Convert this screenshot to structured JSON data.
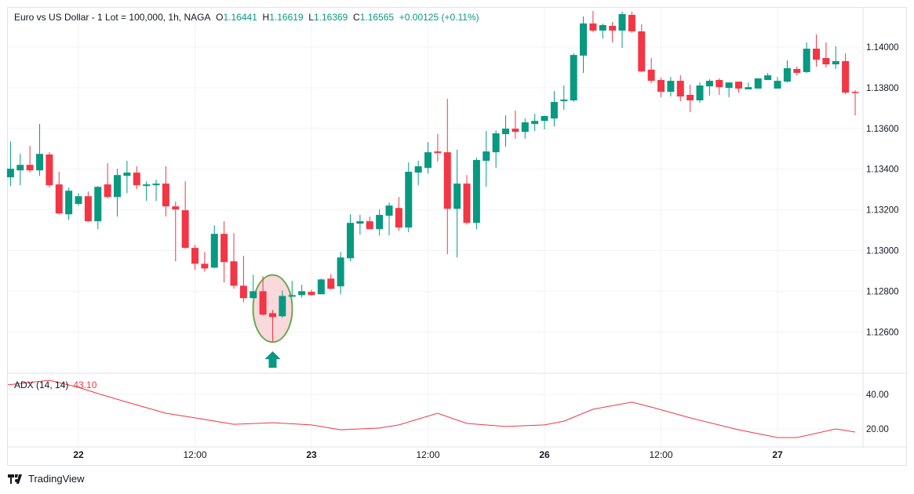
{
  "header": {
    "symbol_title": "Euro vs US Dollar - 1 Lot = 100,000, 1h, NAGA",
    "open_label": "O",
    "open": "1.16441",
    "high_label": "H",
    "high": "1.16619",
    "low_label": "L",
    "low": "1.16369",
    "close_label": "C",
    "close": "1.16565",
    "change": "+0.00125 (+0.11%)"
  },
  "indicator": {
    "name": "ADX (14, 14)",
    "value": "43.10",
    "color": "#f23645"
  },
  "footer": {
    "brand": "TradingView",
    "logo_icon": "tradingview-logo-icon"
  },
  "colors": {
    "up": "#089981",
    "down": "#f23645",
    "highlight_fill": "#f9d9dc",
    "highlight_stroke": "#6aa84f",
    "arrow": "#089981"
  },
  "chart_data": [
    {
      "type": "candlestick",
      "title": "",
      "ylim": [
        1.1248,
        1.1418
      ],
      "grid": true,
      "y_ticks": [
        "1.14000",
        "1.13800",
        "1.13600",
        "1.13400",
        "1.13200",
        "1.13000",
        "1.12800",
        "1.12600"
      ],
      "x_ticks": [
        {
          "index": 7,
          "label": "22",
          "day": true
        },
        {
          "index": 19,
          "label": "12:00",
          "day": false
        },
        {
          "index": 31,
          "label": "23",
          "day": true
        },
        {
          "index": 43,
          "label": "12:00",
          "day": false
        },
        {
          "index": 55,
          "label": "26",
          "day": true
        },
        {
          "index": 67,
          "label": "12:00",
          "day": false
        },
        {
          "index": 79,
          "label": "27",
          "day": true
        }
      ],
      "ohlc": [
        [
          1.1336,
          1.13537,
          1.13317,
          1.13402
        ],
        [
          1.13394,
          1.13475,
          1.13321,
          1.13421
        ],
        [
          1.13421,
          1.13514,
          1.13383,
          1.13394
        ],
        [
          1.13394,
          1.13622,
          1.13367,
          1.13475
        ],
        [
          1.13472,
          1.13483,
          1.1331,
          1.13321
        ],
        [
          1.13325,
          1.13387,
          1.13178,
          1.13182
        ],
        [
          1.13178,
          1.1331,
          1.13151,
          1.13294
        ],
        [
          1.13229,
          1.13282,
          1.13221,
          1.13267
        ],
        [
          1.13267,
          1.1329,
          1.1314,
          1.13144
        ],
        [
          1.13144,
          1.13317,
          1.13105,
          1.13313
        ],
        [
          1.13325,
          1.13429,
          1.13256,
          1.13263
        ],
        [
          1.13263,
          1.13402,
          1.13167,
          1.13371
        ],
        [
          1.13367,
          1.13441,
          1.13282,
          1.13383
        ],
        [
          1.13383,
          1.13414,
          1.13302,
          1.13321
        ],
        [
          1.13317,
          1.1334,
          1.13244,
          1.13325
        ],
        [
          1.13321,
          1.13348,
          1.13244,
          1.13329
        ],
        [
          1.13329,
          1.13414,
          1.13167,
          1.13217
        ],
        [
          1.13217,
          1.1324,
          1.12947,
          1.13202
        ],
        [
          1.13198,
          1.1334,
          1.13009,
          1.13013
        ],
        [
          1.13013,
          1.13028,
          1.12905,
          1.12935
        ],
        [
          1.12935,
          1.12993,
          1.12897,
          1.12912
        ],
        [
          1.12916,
          1.13124,
          1.12912,
          1.13082
        ],
        [
          1.13082,
          1.13144,
          1.12843,
          1.12943
        ],
        [
          1.12947,
          1.13086,
          1.12812,
          1.12827
        ],
        [
          1.12827,
          1.12974,
          1.12746,
          1.12766
        ],
        [
          1.12766,
          1.12881,
          1.12766,
          1.128
        ],
        [
          1.128,
          1.12874,
          1.12681,
          1.12685
        ],
        [
          1.12692,
          1.12708,
          1.12554,
          1.12673
        ],
        [
          1.12677,
          1.12804,
          1.12669,
          1.12777
        ],
        [
          1.12773,
          1.12851,
          1.12773,
          1.12781
        ],
        [
          1.12781,
          1.12831,
          1.12769,
          1.128
        ],
        [
          1.12797,
          1.12808,
          1.12777,
          1.12781
        ],
        [
          1.12785,
          1.12862,
          1.12785,
          1.12858
        ],
        [
          1.12862,
          1.12885,
          1.12808,
          1.12812
        ],
        [
          1.12824,
          1.12993,
          1.12785,
          1.12966
        ],
        [
          1.12962,
          1.13178,
          1.12947,
          1.13136
        ],
        [
          1.13132,
          1.13175,
          1.13078,
          1.13144
        ],
        [
          1.13144,
          1.13167,
          1.13105,
          1.13105
        ],
        [
          1.13105,
          1.13202,
          1.13074,
          1.13175
        ],
        [
          1.13171,
          1.13236,
          1.13074,
          1.13221
        ],
        [
          1.13209,
          1.13263,
          1.13097,
          1.13113
        ],
        [
          1.13113,
          1.13433,
          1.1309,
          1.13387
        ],
        [
          1.13383,
          1.13441,
          1.13321,
          1.13414
        ],
        [
          1.13406,
          1.13533,
          1.13379,
          1.13483
        ],
        [
          1.13487,
          1.13572,
          1.13437,
          1.13479
        ],
        [
          1.13483,
          1.13745,
          1.12982,
          1.13205
        ],
        [
          1.13205,
          1.13495,
          1.12966,
          1.13329
        ],
        [
          1.13329,
          1.13371,
          1.13128,
          1.13136
        ],
        [
          1.13136,
          1.13456,
          1.13105,
          1.13445
        ],
        [
          1.13441,
          1.13587,
          1.13313,
          1.13487
        ],
        [
          1.13483,
          1.13591,
          1.13406,
          1.13576
        ],
        [
          1.13572,
          1.13664,
          1.1351,
          1.13599
        ],
        [
          1.13599,
          1.13688,
          1.13549,
          1.13583
        ],
        [
          1.13583,
          1.13649,
          1.13549,
          1.1363
        ],
        [
          1.13622,
          1.13672,
          1.13587,
          1.13637
        ],
        [
          1.13637,
          1.13664,
          1.13595,
          1.13661
        ],
        [
          1.13649,
          1.13784,
          1.1361,
          1.1373
        ],
        [
          1.13734,
          1.13811,
          1.13691,
          1.13742
        ],
        [
          1.13738,
          1.13969,
          1.1373,
          1.13961
        ],
        [
          1.13958,
          1.1415,
          1.13873,
          1.14116
        ],
        [
          1.14116,
          1.14177,
          1.14073,
          1.14081
        ],
        [
          1.14081,
          1.14116,
          1.14042,
          1.14108
        ],
        [
          1.14104,
          1.14123,
          1.14023,
          1.14081
        ],
        [
          1.14081,
          1.14174,
          1.13996,
          1.14162
        ],
        [
          1.14158,
          1.14174,
          1.14069,
          1.14077
        ],
        [
          1.14077,
          1.14112,
          1.13877,
          1.1388
        ],
        [
          1.13889,
          1.13946,
          1.13823,
          1.13834
        ],
        [
          1.13838,
          1.1385,
          1.13753,
          1.1378
        ],
        [
          1.1378,
          1.13853,
          1.13757,
          1.13834
        ],
        [
          1.13834,
          1.13861,
          1.13734,
          1.13757
        ],
        [
          1.13765,
          1.13815,
          1.1368,
          1.13738
        ],
        [
          1.13738,
          1.13826,
          1.13726,
          1.13811
        ],
        [
          1.13807,
          1.13842,
          1.13761,
          1.13834
        ],
        [
          1.13838,
          1.13846,
          1.13765,
          1.13803
        ],
        [
          1.13799,
          1.13826,
          1.13753,
          1.13826
        ],
        [
          1.1383,
          1.1383,
          1.13776,
          1.13796
        ],
        [
          1.13792,
          1.13826,
          1.13792,
          1.13803
        ],
        [
          1.13796,
          1.13846,
          1.13796,
          1.13846
        ],
        [
          1.13838,
          1.13873,
          1.13838,
          1.13861
        ],
        [
          1.13796,
          1.13853,
          1.13796,
          1.13834
        ],
        [
          1.1383,
          1.13934,
          1.13826,
          1.13896
        ],
        [
          1.13892,
          1.13904,
          1.13861,
          1.13873
        ],
        [
          1.13877,
          1.14023,
          1.13873,
          1.13992
        ],
        [
          1.13992,
          1.14062,
          1.13904,
          1.13938
        ],
        [
          1.13946,
          1.14023,
          1.139,
          1.13915
        ],
        [
          1.13915,
          1.14004,
          1.13892,
          1.13931
        ],
        [
          1.13931,
          1.13969,
          1.13769,
          1.13776
        ],
        [
          1.1378,
          1.13788,
          1.13664,
          1.13776
        ]
      ],
      "annotations": [
        {
          "type": "ellipse-highlight",
          "candle_index": 27,
          "price_range": [
            1.1255,
            1.1288
          ]
        },
        {
          "type": "up-arrow",
          "candle_index": 27
        }
      ]
    },
    {
      "type": "line",
      "title": "ADX (14, 14)",
      "ylim": [
        8,
        55
      ],
      "y_ticks": [
        "40.00",
        "20.00"
      ],
      "series": [
        {
          "name": "ADX (14, 14)",
          "points": [
            [
              0,
              45.5
            ],
            [
              4,
              48.2
            ],
            [
              7,
              44.1
            ],
            [
              9,
              40.5
            ],
            [
              12,
              35.5
            ],
            [
              16,
              29.1
            ],
            [
              19,
              26.4
            ],
            [
              23,
              22.7
            ],
            [
              27,
              23.6
            ],
            [
              31,
              22.3
            ],
            [
              34,
              19.5
            ],
            [
              38,
              20.5
            ],
            [
              40,
              22.3
            ],
            [
              44,
              29.1
            ],
            [
              47,
              23.2
            ],
            [
              51,
              21.4
            ],
            [
              55,
              22.3
            ],
            [
              57,
              24.5
            ],
            [
              60,
              31.4
            ],
            [
              64,
              35.5
            ],
            [
              66,
              32.7
            ],
            [
              70,
              26.4
            ],
            [
              75,
              19.5
            ],
            [
              79,
              15.0
            ],
            [
              81,
              15.0
            ],
            [
              85,
              20.0
            ],
            [
              87,
              18.2
            ]
          ]
        }
      ]
    }
  ]
}
